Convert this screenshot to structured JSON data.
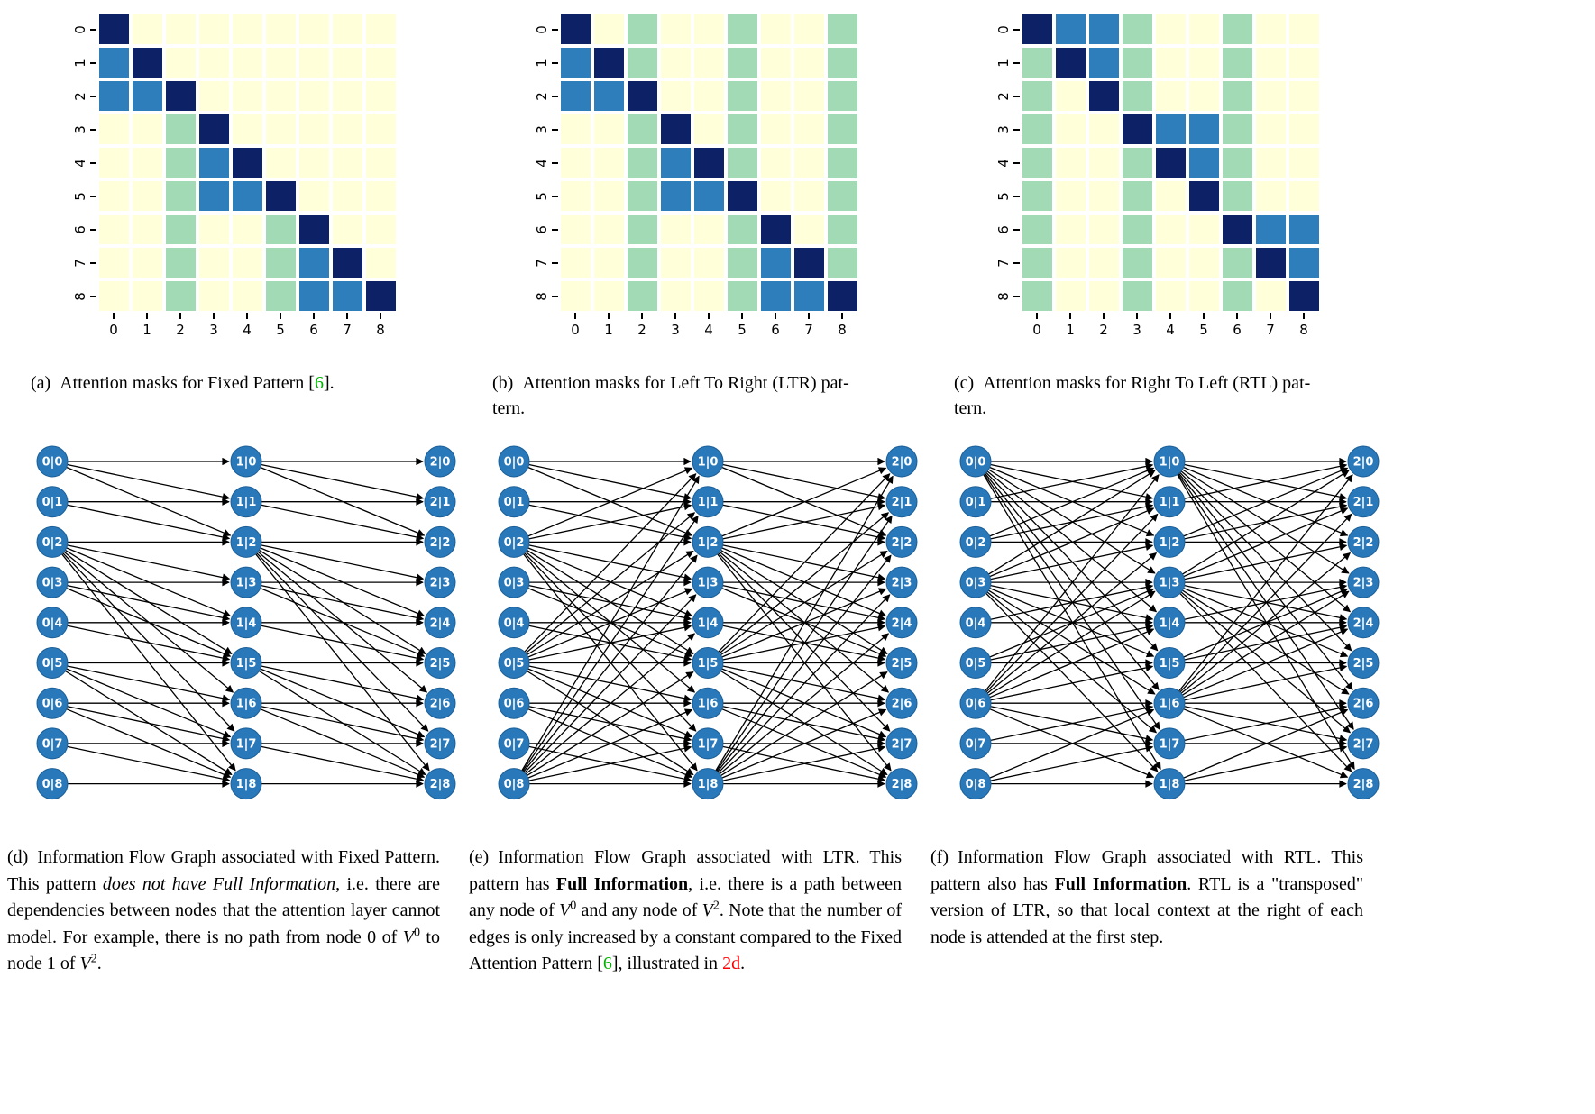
{
  "palette": {
    "cell_none": "#ffffd9",
    "cell_global": "#a1dab4",
    "cell_local": "#2e7ebc",
    "cell_diag": "#0d2166",
    "node_fill": "#2878ba",
    "node_stroke": "#1b5f97",
    "node_text": "#ffffff",
    "edge_color": "#000000",
    "tick_color": "#000000",
    "cite_color": "#00b200",
    "ref_color": "#fb0006"
  },
  "axis": {
    "ticks": [
      "0",
      "1",
      "2",
      "3",
      "4",
      "5",
      "6",
      "7",
      "8"
    ]
  },
  "masks": {
    "fixed": [
      [
        3,
        0,
        0,
        0,
        0,
        0,
        0,
        0,
        0
      ],
      [
        2,
        3,
        0,
        0,
        0,
        0,
        0,
        0,
        0
      ],
      [
        2,
        2,
        3,
        0,
        0,
        0,
        0,
        0,
        0
      ],
      [
        0,
        0,
        1,
        3,
        0,
        0,
        0,
        0,
        0
      ],
      [
        0,
        0,
        1,
        2,
        3,
        0,
        0,
        0,
        0
      ],
      [
        0,
        0,
        1,
        2,
        2,
        3,
        0,
        0,
        0
      ],
      [
        0,
        0,
        1,
        0,
        0,
        1,
        3,
        0,
        0
      ],
      [
        0,
        0,
        1,
        0,
        0,
        1,
        2,
        3,
        0
      ],
      [
        0,
        0,
        1,
        0,
        0,
        1,
        2,
        2,
        3
      ]
    ],
    "ltr": [
      [
        3,
        0,
        1,
        0,
        0,
        1,
        0,
        0,
        1
      ],
      [
        2,
        3,
        1,
        0,
        0,
        1,
        0,
        0,
        1
      ],
      [
        2,
        2,
        3,
        0,
        0,
        1,
        0,
        0,
        1
      ],
      [
        0,
        0,
        1,
        3,
        0,
        1,
        0,
        0,
        1
      ],
      [
        0,
        0,
        1,
        2,
        3,
        1,
        0,
        0,
        1
      ],
      [
        0,
        0,
        1,
        2,
        2,
        3,
        0,
        0,
        1
      ],
      [
        0,
        0,
        1,
        0,
        0,
        1,
        3,
        0,
        1
      ],
      [
        0,
        0,
        1,
        0,
        0,
        1,
        2,
        3,
        1
      ],
      [
        0,
        0,
        1,
        0,
        0,
        1,
        2,
        2,
        3
      ]
    ],
    "rtl": [
      [
        3,
        2,
        2,
        1,
        0,
        0,
        1,
        0,
        0
      ],
      [
        1,
        3,
        2,
        1,
        0,
        0,
        1,
        0,
        0
      ],
      [
        1,
        0,
        3,
        1,
        0,
        0,
        1,
        0,
        0
      ],
      [
        1,
        0,
        0,
        3,
        2,
        2,
        1,
        0,
        0
      ],
      [
        1,
        0,
        0,
        1,
        3,
        2,
        1,
        0,
        0
      ],
      [
        1,
        0,
        0,
        1,
        0,
        3,
        1,
        0,
        0
      ],
      [
        1,
        0,
        0,
        1,
        0,
        0,
        3,
        2,
        2
      ],
      [
        1,
        0,
        0,
        1,
        0,
        0,
        1,
        3,
        2
      ],
      [
        1,
        0,
        0,
        1,
        0,
        0,
        1,
        0,
        3
      ]
    ]
  },
  "graphs": {
    "layer_prefixes": [
      "0",
      "1",
      "2"
    ],
    "node_ids": [
      "0",
      "1",
      "2",
      "3",
      "4",
      "5",
      "6",
      "7",
      "8"
    ],
    "separator": "|"
  },
  "captions": {
    "a": {
      "runs": [
        {
          "t": "(a)",
          "s": "lbl"
        },
        {
          "t": "Attention masks for Fixed Pattern [",
          "s": ""
        },
        {
          "t": "6",
          "s": "g"
        },
        {
          "t": "].",
          "s": ""
        }
      ]
    },
    "b": {
      "runs": [
        {
          "t": "(b)",
          "s": "lbl"
        },
        {
          "t": "Attention masks for Left To Right (LTR) pat-",
          "s": ""
        },
        {
          "t": "",
          "s": "br"
        },
        {
          "t": "tern.",
          "s": ""
        }
      ]
    },
    "c": {
      "runs": [
        {
          "t": "(c)",
          "s": "lbl"
        },
        {
          "t": "Attention masks for Right To Left (RTL) pat-",
          "s": ""
        },
        {
          "t": "",
          "s": "br"
        },
        {
          "t": "tern.",
          "s": ""
        }
      ]
    },
    "d": {
      "runs": [
        {
          "t": "(d)",
          "s": "lbl"
        },
        {
          "t": "Information Flow Graph associated with Fixed Pattern. This pattern ",
          "s": ""
        },
        {
          "t": "does not have Full Information",
          "s": "i"
        },
        {
          "t": ", i.e. there are dependencies between nodes that the attention layer cannot model. For example, there is no path from node 0 of ",
          "s": ""
        },
        {
          "t": "V",
          "s": "v"
        },
        {
          "t": "0",
          "s": "sup"
        },
        {
          "t": " to node 1 of ",
          "s": ""
        },
        {
          "t": "V",
          "s": "v"
        },
        {
          "t": "2",
          "s": "sup"
        },
        {
          "t": ".",
          "s": ""
        }
      ]
    },
    "e": {
      "runs": [
        {
          "t": "(e)",
          "s": "lbl"
        },
        {
          "t": "Information Flow Graph associated with LTR. This pattern has ",
          "s": ""
        },
        {
          "t": "Full Information",
          "s": "b"
        },
        {
          "t": ", i.e. there is a path between any node of ",
          "s": ""
        },
        {
          "t": "V",
          "s": "v"
        },
        {
          "t": "0",
          "s": "sup"
        },
        {
          "t": " and any node of ",
          "s": ""
        },
        {
          "t": "V",
          "s": "v"
        },
        {
          "t": "2",
          "s": "sup"
        },
        {
          "t": ". Note that the number of edges is only increased by a constant compared to the Fixed Attention Pattern [",
          "s": ""
        },
        {
          "t": "6",
          "s": "g"
        },
        {
          "t": "], illustrated in ",
          "s": ""
        },
        {
          "t": "2d",
          "s": "r"
        },
        {
          "t": ".",
          "s": ""
        }
      ]
    },
    "f": {
      "runs": [
        {
          "t": "(f)",
          "s": "lbl"
        },
        {
          "t": "Information Flow Graph associated with RTL. This pattern also has ",
          "s": ""
        },
        {
          "t": "Full Information",
          "s": "b"
        },
        {
          "t": ". RTL is a \"transposed\" version of LTR, so that local context at the right of each node is attended at the first step.",
          "s": ""
        }
      ]
    }
  }
}
